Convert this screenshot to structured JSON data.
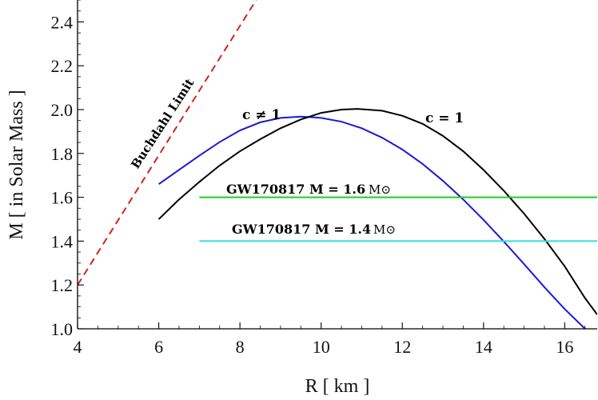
{
  "chart_data": {
    "type": "line",
    "xlabel": "R [ km ]",
    "ylabel": "M  [ in  Solar  Mass ]",
    "xlim": [
      4,
      16.8
    ],
    "ylim": [
      1.0,
      2.5
    ],
    "x_ticks": [
      "4",
      "6",
      "8",
      "10",
      "12",
      "14",
      "16"
    ],
    "y_ticks": [
      "1.0",
      "1.2",
      "1.4",
      "1.6",
      "1.8",
      "2.0",
      "2.2",
      "2.4"
    ],
    "series": [
      {
        "name": "c≠1",
        "color": "#1a1ad6",
        "x": [
          6.0,
          6.5,
          7.0,
          7.5,
          8.0,
          8.5,
          9.0,
          9.5,
          9.8,
          10.0,
          10.5,
          11.0,
          11.5,
          12.0,
          12.5,
          13.0,
          13.5,
          14.0,
          14.5,
          15.0,
          15.5,
          16.0,
          16.5
        ],
        "y": [
          1.66,
          1.725,
          1.79,
          1.852,
          1.905,
          1.942,
          1.962,
          1.968,
          1.965,
          1.962,
          1.945,
          1.915,
          1.872,
          1.818,
          1.752,
          1.675,
          1.59,
          1.497,
          1.398,
          1.295,
          1.19,
          1.09,
          1.0
        ]
      },
      {
        "name": "c = 1",
        "color": "#000000",
        "x": [
          6.0,
          6.5,
          7.0,
          7.5,
          8.0,
          8.5,
          9.0,
          9.5,
          10.0,
          10.5,
          10.9,
          11.5,
          12.0,
          12.5,
          13.0,
          13.5,
          14.0,
          14.5,
          15.0,
          15.5,
          16.0,
          16.5,
          16.8
        ],
        "y": [
          1.5,
          1.59,
          1.67,
          1.745,
          1.81,
          1.865,
          1.915,
          1.955,
          1.985,
          2.0,
          2.003,
          1.995,
          1.972,
          1.935,
          1.88,
          1.81,
          1.725,
          1.63,
          1.525,
          1.41,
          1.285,
          1.14,
          1.065
        ]
      },
      {
        "name": "Buchdahl Limit",
        "color": "#d62020",
        "style": "dashed",
        "x": [
          4.0,
          8.4
        ],
        "y": [
          1.2,
          2.5
        ]
      },
      {
        "name": "GW170817  M = 1.6 M⊙",
        "color": "#22cc22",
        "x": [
          7.0,
          16.8
        ],
        "y": [
          1.6,
          1.6
        ]
      },
      {
        "name": "GW170817  M = 1.4 M⊙",
        "color": "#33dddd",
        "x": [
          7.0,
          16.8
        ],
        "y": [
          1.4,
          1.4
        ]
      }
    ],
    "annotations": {
      "c_neq_1": "c ≠ 1",
      "c_eq_1": "c = 1",
      "buchdahl": "Buchdahl Limit",
      "gw16": "GW170817  M = 1.6",
      "gw14": "GW170817  M = 1.4",
      "msun": "M⊙"
    }
  }
}
